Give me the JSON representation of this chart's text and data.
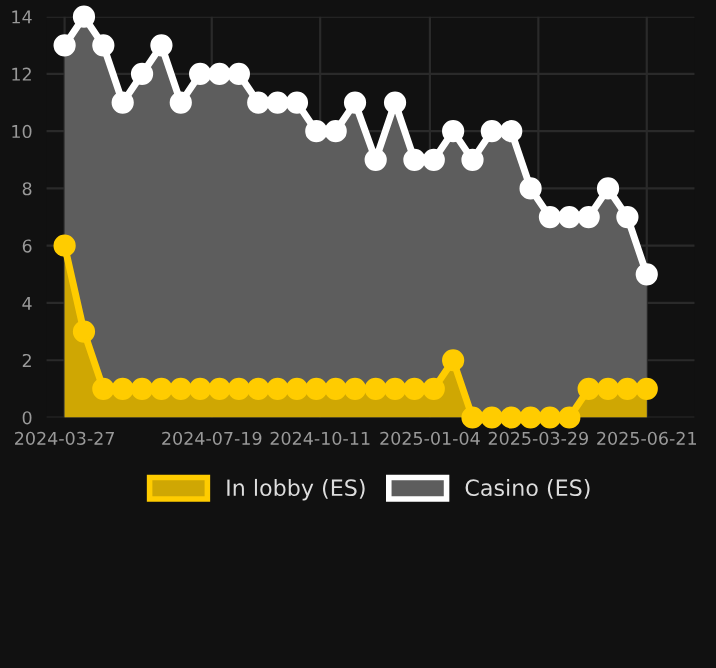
{
  "chart_data": {
    "type": "area",
    "x": [
      "2024-03-27",
      "2024-04-11",
      "2024-04-26",
      "2024-05-11",
      "2024-05-26",
      "2024-06-10",
      "2024-06-25",
      "2024-07-10",
      "2024-07-25",
      "2024-08-09",
      "2024-08-24",
      "2024-09-08",
      "2024-09-23",
      "2024-10-08",
      "2024-10-23",
      "2024-11-07",
      "2024-11-23",
      "2024-12-08",
      "2024-12-23",
      "2025-01-07",
      "2025-01-22",
      "2025-02-06",
      "2025-02-21",
      "2025-03-08",
      "2025-03-23",
      "2025-04-07",
      "2025-04-22",
      "2025-05-07",
      "2025-05-22",
      "2025-06-06",
      "2025-06-21"
    ],
    "series": [
      {
        "name": "Casino (ES)",
        "color": "#ffffff",
        "values": [
          13,
          14,
          13,
          11,
          12,
          13,
          11,
          12,
          12,
          12,
          11,
          11,
          11,
          10,
          10,
          11,
          9,
          11,
          9,
          9,
          10,
          9,
          10,
          10,
          8,
          7,
          7,
          7,
          8,
          7,
          5
        ]
      },
      {
        "name": "In lobby (ES)",
        "color": "#ffcc00",
        "values": [
          6,
          3,
          1,
          1,
          1,
          1,
          1,
          1,
          1,
          1,
          1,
          1,
          1,
          1,
          1,
          1,
          1,
          1,
          1,
          1,
          2,
          0,
          0,
          0,
          0,
          0,
          0,
          1,
          1,
          1,
          1
        ]
      }
    ],
    "xlim": [
      "2024-03-13",
      "2025-07-28"
    ],
    "xticks": [
      {
        "value": "2024-03-27",
        "label": "2024-03-27"
      },
      {
        "value": "2024-07-19",
        "label": "2024-07-19"
      },
      {
        "value": "2024-10-11",
        "label": "2024-10-11"
      },
      {
        "value": "2025-01-04",
        "label": "2025-01-04"
      },
      {
        "value": "2025-03-29",
        "label": "2025-03-29"
      },
      {
        "value": "2025-06-21",
        "label": "2025-06-21"
      }
    ],
    "ylim": [
      0,
      14
    ],
    "yticks": [
      0,
      2,
      4,
      6,
      8,
      10,
      12,
      14
    ],
    "grid": true,
    "legend": "bottom",
    "marker": "circle",
    "line_style": "solid"
  }
}
